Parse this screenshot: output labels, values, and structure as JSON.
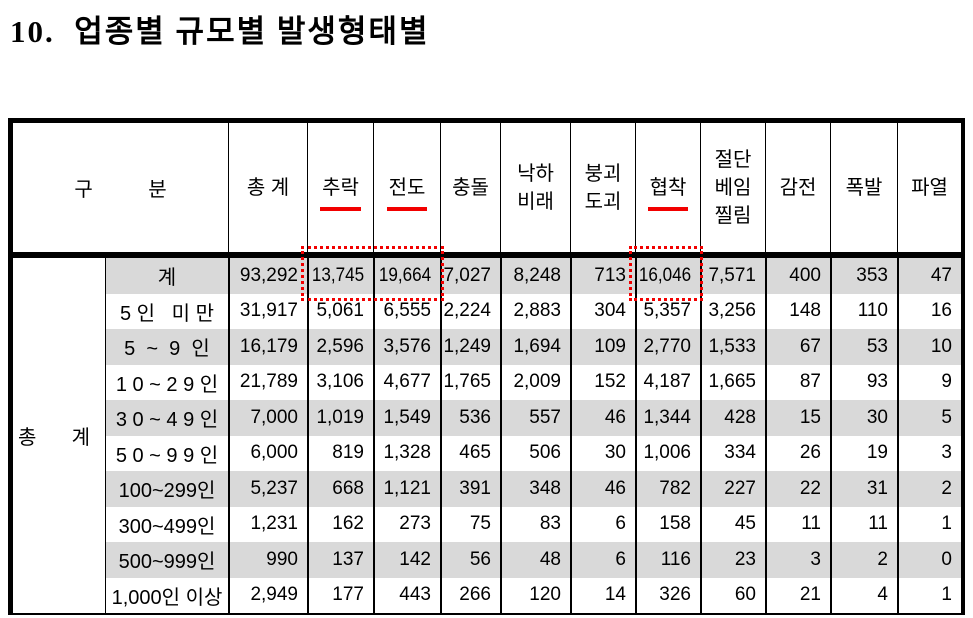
{
  "page": {
    "title": "10.  업종별 규모별 발생형태별"
  },
  "table": {
    "corner_header": "구          분",
    "side_label": {
      "left": "총",
      "right": "계"
    },
    "columns": [
      {
        "label": "총 계"
      },
      {
        "label": "추락"
      },
      {
        "label": "전도"
      },
      {
        "label": "충돌"
      },
      {
        "label": "낙하\n비래"
      },
      {
        "label": "붕괴\n도괴"
      },
      {
        "label": "협착"
      },
      {
        "label": "절단\n베임\n찔림"
      },
      {
        "label": "감전"
      },
      {
        "label": "폭발"
      },
      {
        "label": "파열"
      }
    ],
    "rows": [
      {
        "label": "계",
        "v": [
          "93,292",
          "13,745",
          "19,664",
          "7,027",
          "8,248",
          "713",
          "16,046",
          "7,571",
          "400",
          "353",
          "47"
        ]
      },
      {
        "label": "5 인   미 만",
        "v": [
          "31,917",
          "5,061",
          "6,555",
          "2,224",
          "2,883",
          "304",
          "5,357",
          "3,256",
          "148",
          "110",
          "16"
        ]
      },
      {
        "label": "5  ~  9  인",
        "v": [
          "16,179",
          "2,596",
          "3,576",
          "1,249",
          "1,694",
          "109",
          "2,770",
          "1,533",
          "67",
          "53",
          "10"
        ]
      },
      {
        "label": "1 0 ~ 2 9 인",
        "v": [
          "21,789",
          "3,106",
          "4,677",
          "1,765",
          "2,009",
          "152",
          "4,187",
          "1,665",
          "87",
          "93",
          "9"
        ]
      },
      {
        "label": "3 0 ~ 4 9 인",
        "v": [
          "7,000",
          "1,019",
          "1,549",
          "536",
          "557",
          "46",
          "1,344",
          "428",
          "15",
          "30",
          "5"
        ]
      },
      {
        "label": "5 0 ~ 9 9 인",
        "v": [
          "6,000",
          "819",
          "1,328",
          "465",
          "506",
          "30",
          "1,006",
          "334",
          "26",
          "19",
          "3"
        ]
      },
      {
        "label": "100~299인",
        "v": [
          "5,237",
          "668",
          "1,121",
          "391",
          "348",
          "46",
          "782",
          "227",
          "22",
          "31",
          "2"
        ]
      },
      {
        "label": "300~499인",
        "v": [
          "1,231",
          "162",
          "273",
          "75",
          "83",
          "6",
          "158",
          "45",
          "11",
          "11",
          "1"
        ]
      },
      {
        "label": "500~999인",
        "v": [
          "990",
          "137",
          "142",
          "56",
          "48",
          "6",
          "116",
          "23",
          "3",
          "2",
          "0"
        ]
      },
      {
        "label": "1,000인 이상",
        "v": [
          "2,949",
          "177",
          "443",
          "266",
          "120",
          "14",
          "326",
          "60",
          "21",
          "4",
          "1"
        ]
      }
    ]
  },
  "annotations": {
    "accent_color": "#f20000",
    "underlined_columns": [
      "추락",
      "전도",
      "협착"
    ],
    "boxed_values": [
      "13,745",
      "19,664",
      "16,046"
    ],
    "shaded_row_color": "#d9d9d9"
  }
}
